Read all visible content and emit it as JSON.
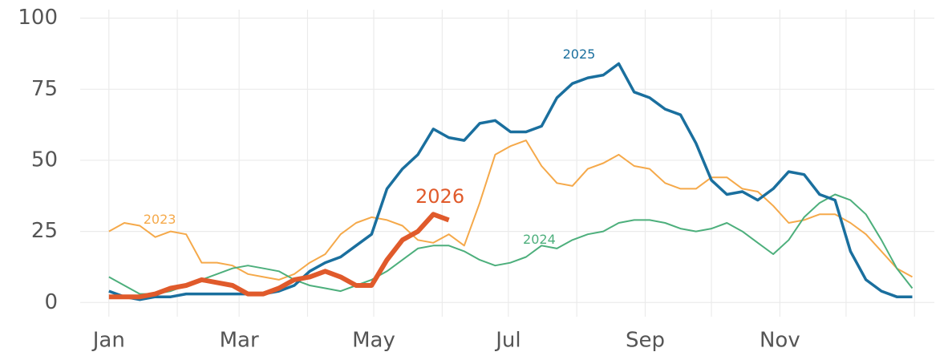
{
  "chart_data": {
    "type": "line",
    "x": [
      0,
      7,
      14,
      21,
      28,
      35,
      42,
      49,
      56,
      63,
      70,
      77,
      84,
      91,
      98,
      105,
      112,
      119,
      126,
      133,
      140,
      147,
      154,
      161,
      168,
      175,
      182,
      189,
      196,
      203,
      210,
      217,
      224,
      231,
      238,
      245,
      252,
      259,
      266,
      273,
      280,
      287,
      294,
      301,
      308,
      315,
      322,
      329,
      336,
      343,
      350,
      357,
      364
    ],
    "series": [
      {
        "name": "2023",
        "color": "#f5a94a",
        "values": [
          25,
          28,
          27,
          23,
          25,
          24,
          14,
          14,
          13,
          10,
          9,
          8,
          10,
          14,
          17,
          24,
          28,
          30,
          29,
          27,
          22,
          21,
          24,
          20,
          35,
          52,
          55,
          57,
          48,
          42,
          41,
          47,
          49,
          52,
          48,
          47,
          42,
          40,
          40,
          44,
          44,
          40,
          39,
          34,
          28,
          29,
          31,
          31,
          28,
          24,
          18,
          12,
          9
        ]
      },
      {
        "name": "2024",
        "color": "#4daf7c",
        "values": [
          9,
          6,
          3,
          3,
          4,
          6,
          8,
          10,
          12,
          13,
          12,
          11,
          8,
          6,
          5,
          4,
          6,
          8,
          11,
          15,
          19,
          20,
          20,
          18,
          15,
          13,
          14,
          16,
          20,
          19,
          22,
          24,
          25,
          28,
          29,
          29,
          28,
          26,
          25,
          26,
          28,
          25,
          21,
          17,
          22,
          30,
          35,
          38,
          36,
          31,
          22,
          12,
          5
        ]
      },
      {
        "name": "2025",
        "color": "#1a6f9e",
        "values": [
          4,
          2,
          1,
          2,
          2,
          3,
          3,
          3,
          3,
          3,
          3,
          4,
          6,
          11,
          14,
          16,
          20,
          24,
          40,
          47,
          52,
          61,
          58,
          57,
          63,
          64,
          60,
          60,
          62,
          72,
          77,
          79,
          80,
          84,
          74,
          72,
          68,
          66,
          56,
          43,
          38,
          39,
          36,
          40,
          46,
          45,
          38,
          36,
          18,
          8,
          4,
          2,
          2
        ]
      },
      {
        "name": "2026",
        "color": "#e05a2b",
        "values": [
          2,
          2,
          2,
          3,
          5,
          6,
          8,
          7,
          6,
          3,
          3,
          5,
          8,
          9,
          11,
          9,
          6,
          6,
          15,
          22,
          25,
          31,
          29,
          null,
          null,
          null,
          null,
          null,
          null,
          null,
          null,
          null,
          null,
          null,
          null,
          null,
          null,
          null,
          null,
          null,
          null,
          null,
          null,
          null,
          null,
          null,
          null,
          null,
          null,
          null,
          null,
          null,
          null
        ]
      }
    ],
    "xlim": [
      -13,
      374
    ],
    "xticks": [
      {
        "value": 0,
        "label": "Jan"
      },
      {
        "value": 59,
        "label": "Mar"
      },
      {
        "value": 120,
        "label": "May"
      },
      {
        "value": 181,
        "label": "Jul"
      },
      {
        "value": 243,
        "label": "Sep"
      },
      {
        "value": 304,
        "label": "Nov"
      }
    ],
    "xgrid_minor": [
      31,
      90,
      151,
      212,
      273,
      334,
      365
    ],
    "ylim": [
      -5,
      103
    ],
    "yticks": [
      0,
      25,
      50,
      75,
      100
    ],
    "grid": true
  }
}
